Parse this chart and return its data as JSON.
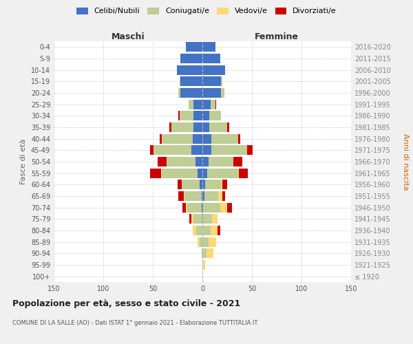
{
  "age_groups": [
    "100+",
    "95-99",
    "90-94",
    "85-89",
    "80-84",
    "75-79",
    "70-74",
    "65-69",
    "60-64",
    "55-59",
    "50-54",
    "45-49",
    "40-44",
    "35-39",
    "30-34",
    "25-29",
    "20-24",
    "15-19",
    "10-14",
    "5-9",
    "0-4"
  ],
  "birth_years": [
    "≤ 1920",
    "1921-1925",
    "1926-1930",
    "1931-1935",
    "1936-1940",
    "1941-1945",
    "1946-1950",
    "1951-1955",
    "1956-1960",
    "1961-1965",
    "1966-1970",
    "1971-1975",
    "1976-1980",
    "1981-1985",
    "1986-1990",
    "1991-1995",
    "1996-2000",
    "2001-2005",
    "2006-2010",
    "2011-2015",
    "2016-2020"
  ],
  "male": {
    "celibi": [
      0,
      0,
      0,
      0,
      0,
      0,
      1,
      1,
      3,
      5,
      7,
      11,
      10,
      9,
      9,
      9,
      22,
      22,
      26,
      22,
      17
    ],
    "coniugati": [
      0,
      0,
      1,
      3,
      6,
      9,
      14,
      17,
      18,
      36,
      29,
      38,
      31,
      22,
      14,
      5,
      2,
      1,
      0,
      0,
      0
    ],
    "vedovi": [
      0,
      0,
      0,
      2,
      4,
      2,
      2,
      1,
      0,
      1,
      0,
      0,
      0,
      0,
      0,
      0,
      0,
      0,
      0,
      0,
      0
    ],
    "divorziati": [
      0,
      0,
      0,
      0,
      0,
      2,
      3,
      5,
      4,
      11,
      9,
      4,
      2,
      2,
      1,
      0,
      0,
      0,
      0,
      0,
      0
    ]
  },
  "female": {
    "nubili": [
      0,
      0,
      0,
      0,
      0,
      1,
      1,
      2,
      3,
      5,
      6,
      9,
      9,
      7,
      7,
      8,
      19,
      19,
      23,
      18,
      13
    ],
    "coniugate": [
      0,
      1,
      4,
      6,
      8,
      9,
      17,
      14,
      16,
      31,
      25,
      36,
      27,
      18,
      12,
      5,
      3,
      1,
      0,
      0,
      0
    ],
    "vedove": [
      0,
      2,
      7,
      8,
      7,
      5,
      7,
      4,
      1,
      1,
      0,
      0,
      0,
      0,
      0,
      0,
      0,
      0,
      0,
      0,
      0
    ],
    "divorziate": [
      0,
      0,
      0,
      0,
      3,
      0,
      5,
      3,
      5,
      9,
      9,
      6,
      2,
      2,
      0,
      1,
      0,
      0,
      0,
      0,
      0
    ]
  },
  "colors": {
    "celibi": "#4472C4",
    "coniugati": "#BFCD96",
    "vedovi": "#FFD878",
    "divorziati": "#CC0000"
  },
  "title": "Popolazione per età, sesso e stato civile - 2021",
  "subtitle": "COMUNE DI LA SALLE (AO) - Dati ISTAT 1° gennaio 2021 - Elaborazione TUTTITALIA.IT",
  "xlabel_left": "Maschi",
  "xlabel_right": "Femmine",
  "ylabel_left": "Fasce di età",
  "ylabel_right": "Anni di nascita",
  "xlim": 150,
  "bg_color": "#f0f0f0",
  "plot_bg": "#ffffff",
  "legend_labels": [
    "Celibi/Nubili",
    "Coniugati/e",
    "Vedovi/e",
    "Divorziati/e"
  ]
}
